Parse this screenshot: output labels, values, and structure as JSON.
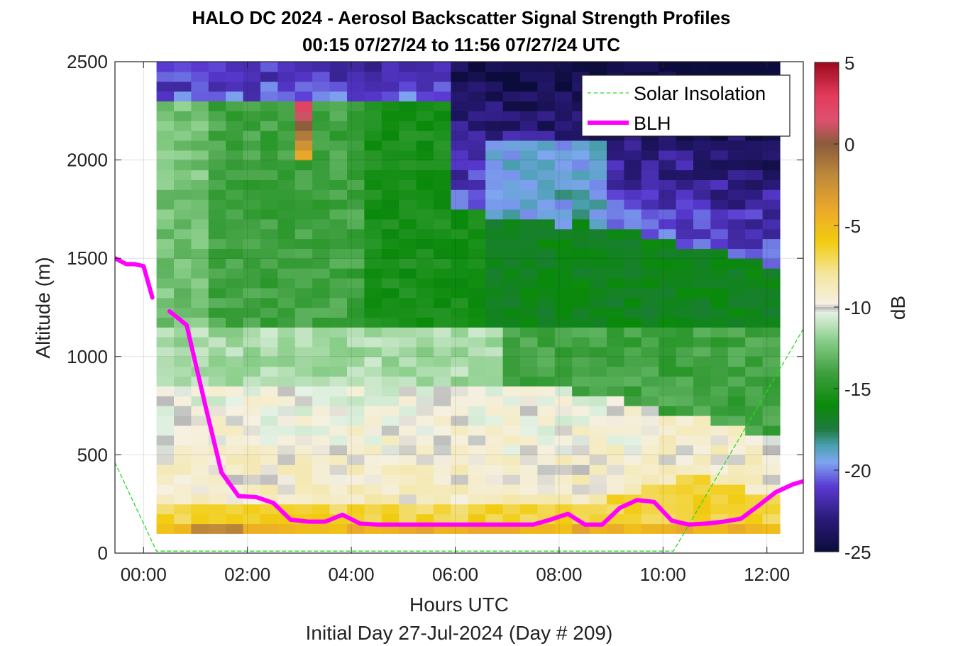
{
  "chart_data": {
    "type": "heatmap",
    "title": "HALO DC 2024 - Aerosol Backscatter Signal Strength Profiles",
    "subtitle": "00:15 07/27/24 to 11:56 07/27/24  UTC",
    "xlabel": "Hours UTC",
    "xlabel2": "Initial Day 27-Jul-2024 (Day # 209)",
    "ylabel": "Altitude (m)",
    "x_unit": "hours UTC",
    "xlim": [
      -0.55,
      12.7
    ],
    "ylim": [
      0,
      2500
    ],
    "x_ticks": [
      0,
      2,
      4,
      6,
      8,
      10,
      12
    ],
    "x_tick_labels": [
      "00:00",
      "02:00",
      "04:00",
      "06:00",
      "08:00",
      "10:00",
      "12:00"
    ],
    "y_ticks": [
      0,
      500,
      1000,
      1500,
      2000,
      2500
    ],
    "y_tick_labels": [
      "0",
      "500",
      "1000",
      "1500",
      "2000",
      "2500"
    ],
    "grid": true,
    "colorbar": {
      "label": "dB",
      "min": -25,
      "max": 5,
      "ticks": [
        5,
        0,
        -5,
        -10,
        -15,
        -20,
        -25
      ],
      "tick_labels": [
        "5",
        "0",
        "-5",
        "-10",
        "-15",
        "-20",
        "-25"
      ],
      "colormap": [
        {
          "v": -25,
          "c": "#0c0c3c"
        },
        {
          "v": -23,
          "c": "#2a1a78"
        },
        {
          "v": -21,
          "c": "#5a3ad2"
        },
        {
          "v": -19.5,
          "c": "#7ea6f0"
        },
        {
          "v": -18.5,
          "c": "#4aa0b0"
        },
        {
          "v": -17.5,
          "c": "#1f7a40"
        },
        {
          "v": -16,
          "c": "#0a8a0a"
        },
        {
          "v": -14,
          "c": "#3fa040"
        },
        {
          "v": -12,
          "c": "#8ccf8c"
        },
        {
          "v": -10.3,
          "c": "#e6f2e6"
        },
        {
          "v": -10.1,
          "c": "#b8b8b8"
        },
        {
          "v": -9.8,
          "c": "#f5f0e1"
        },
        {
          "v": -8,
          "c": "#f4e6a0"
        },
        {
          "v": -6,
          "c": "#f2cc10"
        },
        {
          "v": -4,
          "c": "#eba82a"
        },
        {
          "v": -2,
          "c": "#c08a3a"
        },
        {
          "v": 0,
          "c": "#8a5c3c"
        },
        {
          "v": 1.5,
          "c": "#e05070"
        },
        {
          "v": 3,
          "c": "#e23a5a"
        },
        {
          "v": 5,
          "c": "#9b0a1e"
        }
      ]
    },
    "heatmap": {
      "x_start": 0.25,
      "x_step": 0.3333,
      "y_start": 100,
      "y_step": 50,
      "n_cols": 36,
      "n_rows": 48
    },
    "series": [
      {
        "name": "Solar Insolation",
        "style": "dashed",
        "color": "#22dd22",
        "x": [
          -0.55,
          0.25,
          10.2,
          12.7
        ],
        "y": [
          460,
          10,
          10,
          1140
        ]
      },
      {
        "name": "BLH",
        "style": "solid",
        "color": "#ff00ff",
        "segments": [
          {
            "x": [
              -0.55,
              -0.33,
              -0.17,
              0.0,
              0.17
            ],
            "y": [
              1500,
              1470,
              1470,
              1460,
              1300
            ]
          },
          {
            "x": [
              0.5,
              0.83,
              1.2,
              1.5,
              1.83,
              2.17,
              2.5,
              2.83,
              3.17,
              3.5,
              3.83,
              4.17,
              4.5,
              5.0,
              5.5,
              6.0,
              6.5,
              7.0,
              7.5,
              7.83,
              8.17,
              8.5,
              8.83,
              9.17,
              9.5,
              9.83,
              10.17,
              10.5,
              10.83,
              11.17,
              11.5,
              11.83,
              12.17,
              12.5,
              12.7
            ],
            "y": [
              1230,
              1160,
              740,
              410,
              290,
              285,
              255,
              170,
              160,
              160,
              195,
              150,
              145,
              145,
              145,
              145,
              145,
              145,
              145,
              170,
              200,
              145,
              145,
              230,
              270,
              260,
              165,
              145,
              150,
              160,
              175,
              240,
              310,
              350,
              365
            ]
          }
        ]
      }
    ],
    "legend": {
      "placement": "top-right",
      "entries": [
        "Solar Insolation",
        "BLH"
      ]
    }
  }
}
